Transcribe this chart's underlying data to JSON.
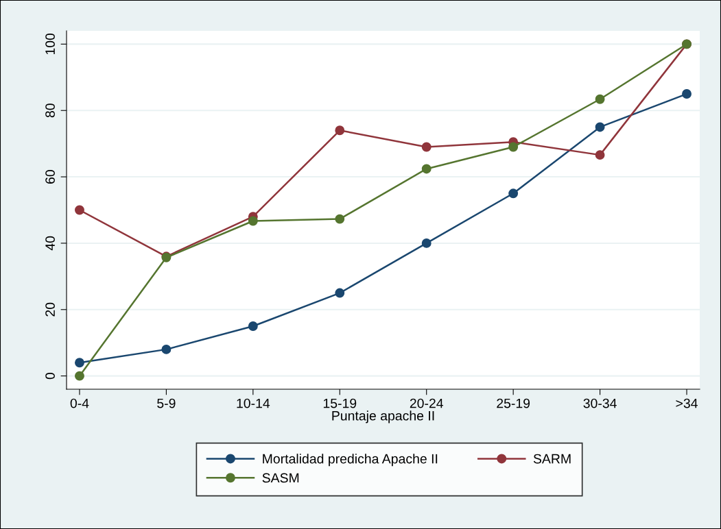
{
  "chart_data": {
    "type": "line",
    "xlabel": "Puntaje apache II",
    "categories": [
      "0-4",
      "5-9",
      "10-14",
      "15-19",
      "20-24",
      "25-19",
      "30-34",
      ">34"
    ],
    "series": [
      {
        "name": "Mortalidad predicha Apache II",
        "color": "#1a476f",
        "values": [
          4,
          8,
          15,
          25,
          40,
          55,
          75,
          85
        ]
      },
      {
        "name": "SARM",
        "color": "#90353b",
        "values": [
          50,
          36,
          48,
          74,
          69,
          70.5,
          66.6,
          100
        ]
      },
      {
        "name": "SASM",
        "color": "#55752f",
        "values": [
          0,
          35.7,
          46.7,
          47.3,
          62.4,
          69,
          83.4,
          100
        ]
      }
    ],
    "ylim": [
      -4,
      104
    ],
    "yticks": [
      0,
      20,
      40,
      60,
      80,
      100
    ],
    "grid": "y",
    "legend": "bottom",
    "marker": "circle",
    "line_style": "solid"
  }
}
